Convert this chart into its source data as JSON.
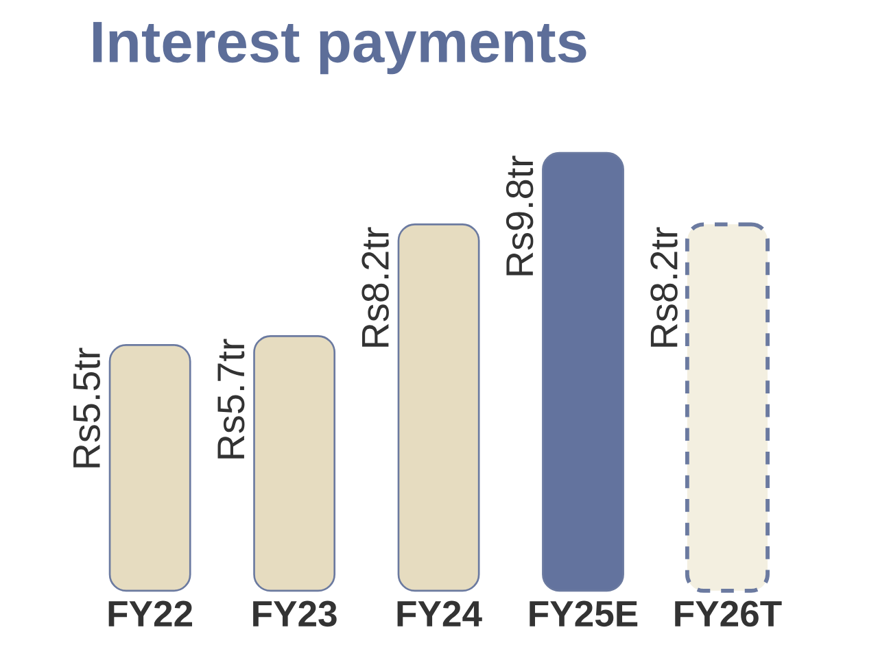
{
  "chart_data": {
    "type": "bar",
    "title": "Interest payments",
    "categories": [
      "FY22",
      "FY23",
      "FY24",
      "FY25E",
      "FY26T"
    ],
    "series": [
      {
        "colors": [
          "#e6dcc0",
          "#e6dcc0",
          "#e6dcc0",
          "#63739e",
          null
        ],
        "values": [
          5.5,
          5.7,
          8.2,
          9.8,
          null
        ],
        "value_labels": [
          "Rs5.5tr",
          "Rs5.7tr",
          "Rs8.2tr",
          "Rs9.8tr",
          null
        ]
      },
      {
        "color": "#f3efe0",
        "line_style": "dashed",
        "values": [
          null,
          null,
          null,
          null,
          8.2
        ],
        "value_labels": [
          null,
          null,
          null,
          null,
          "Rs8.2tr"
        ]
      }
    ]
  }
}
